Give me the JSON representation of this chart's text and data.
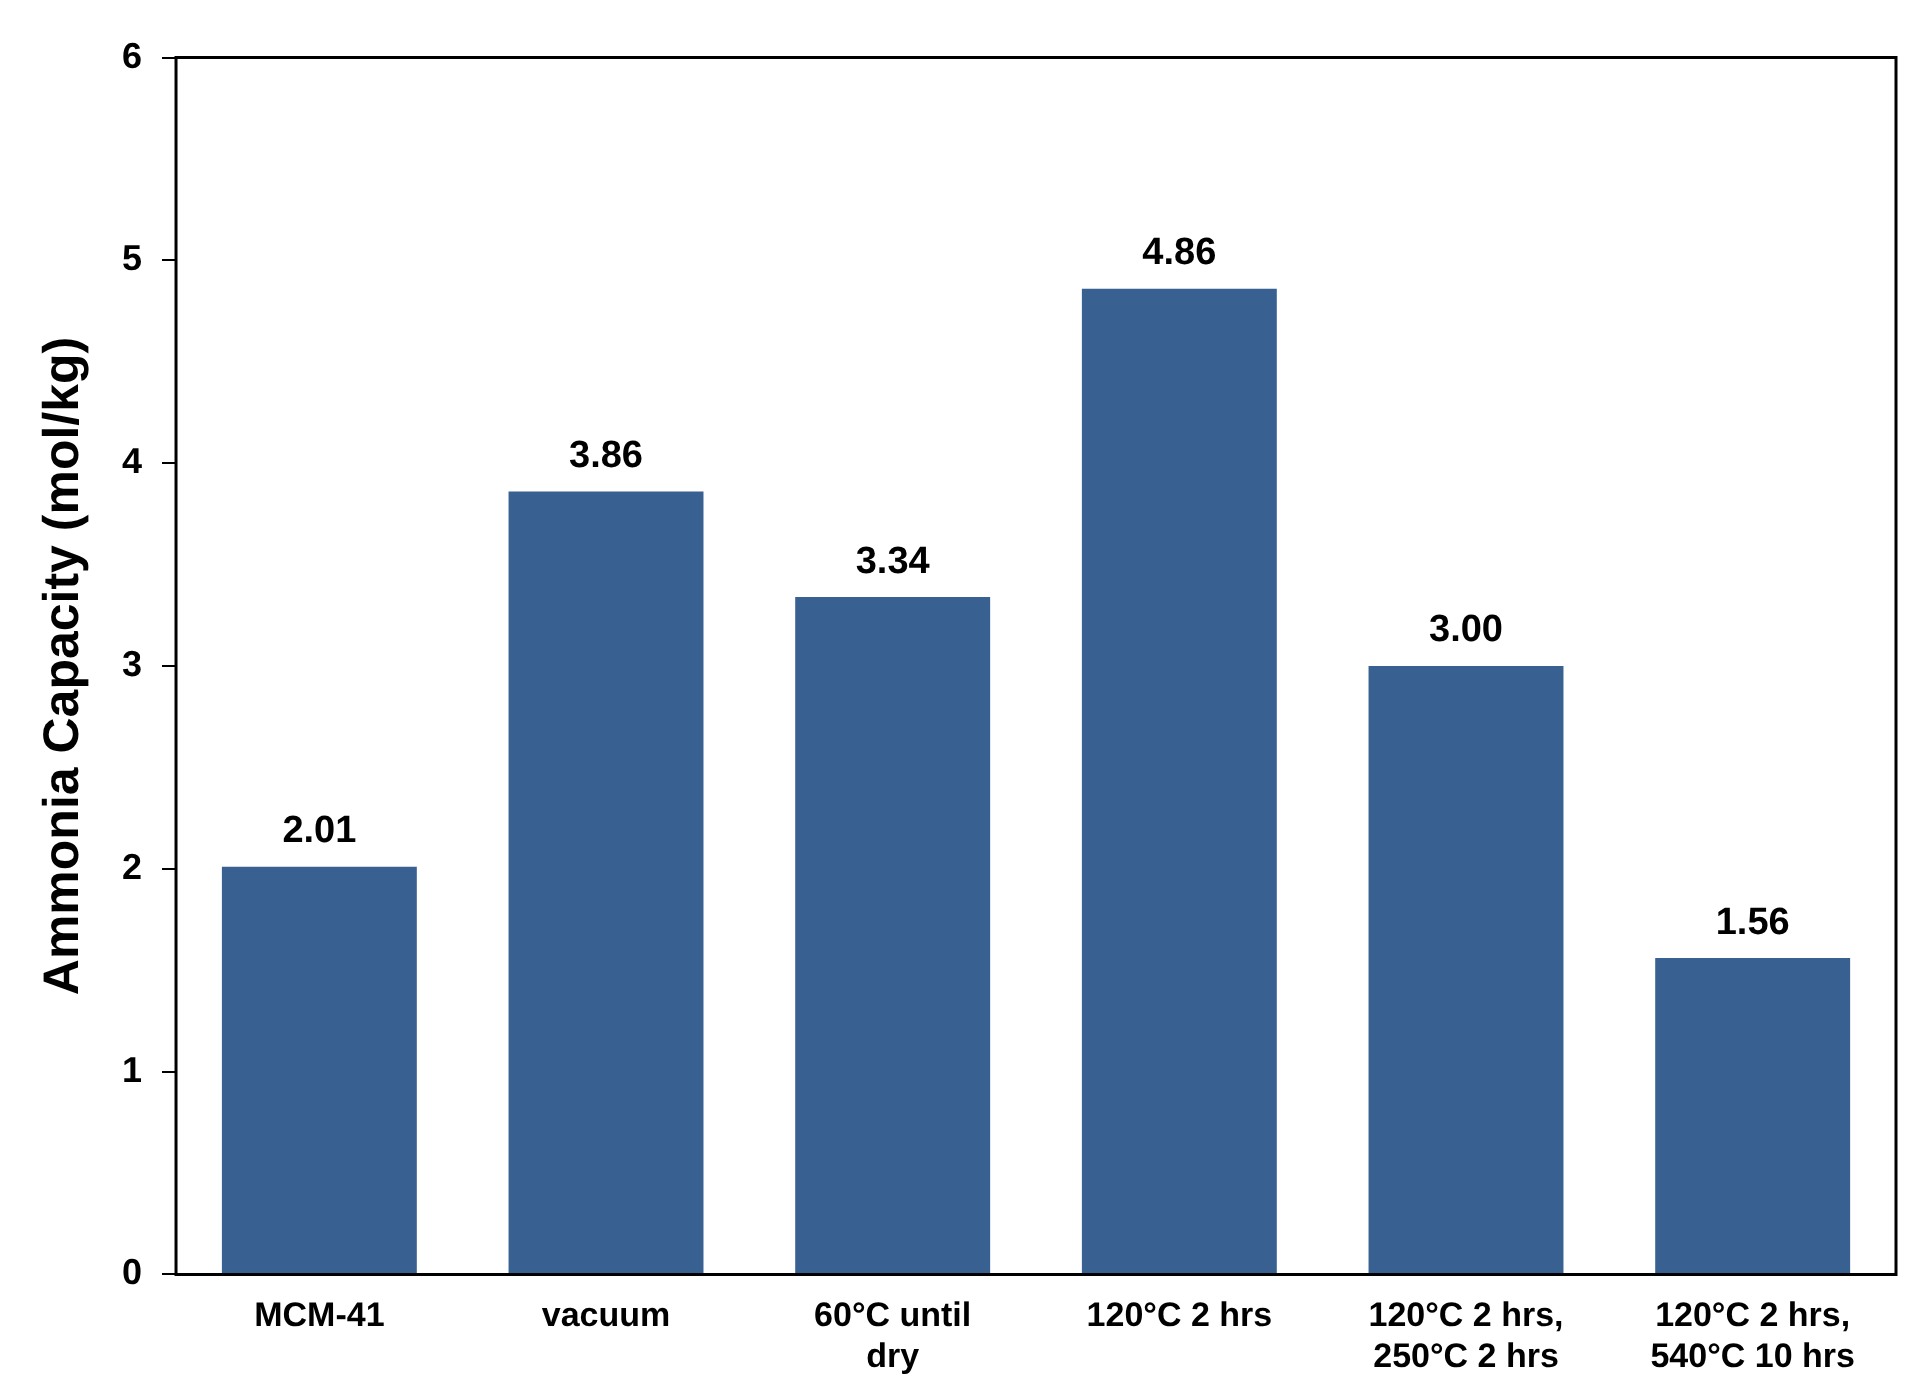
{
  "chart_data": {
    "type": "bar",
    "ylabel": "Ammonia Capacity (mol/kg)",
    "categories": [
      "MCM-41",
      "vacuum",
      "60°C until dry",
      "120°C 2 hrs",
      "120°C 2 hrs, 250°C 2 hrs",
      "120°C 2 hrs, 540°C 10 hrs"
    ],
    "values": [
      2.01,
      3.86,
      3.34,
      4.86,
      3.0,
      1.56
    ],
    "value_labels": [
      "2.01",
      "3.86",
      "3.34",
      "4.86",
      "3.00",
      "1.56"
    ],
    "color": "#386192",
    "ylim": [
      0,
      6
    ],
    "yticks": [
      0,
      1,
      2,
      3,
      4,
      5,
      6
    ],
    "grid": false,
    "legend": false
  }
}
